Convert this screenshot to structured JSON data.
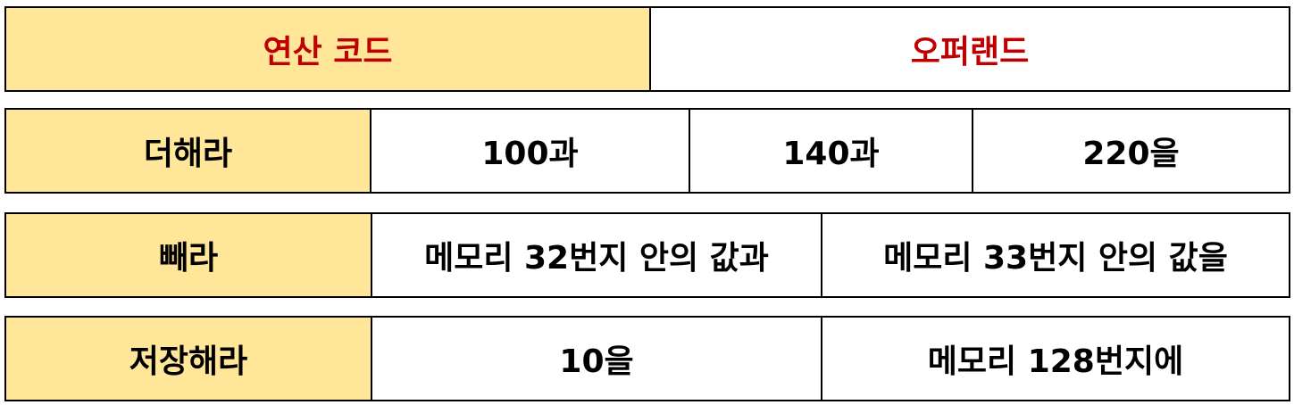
{
  "header": {
    "opcode_label": "연산 코드",
    "operand_label": "오퍼랜드"
  },
  "rows": [
    {
      "opcode": "더해라",
      "operands": [
        "100과",
        "140과",
        "220을"
      ]
    },
    {
      "opcode": "빼라",
      "operands": [
        "메모리 32번지 안의 값과",
        "메모리 33번지 안의 값을"
      ]
    },
    {
      "opcode": "저장해라",
      "operands": [
        "10을",
        "메모리 128번지에"
      ]
    }
  ],
  "colors": {
    "opcode_fill": "#ffe699",
    "header_text": "#c00000",
    "border": "#000000"
  }
}
